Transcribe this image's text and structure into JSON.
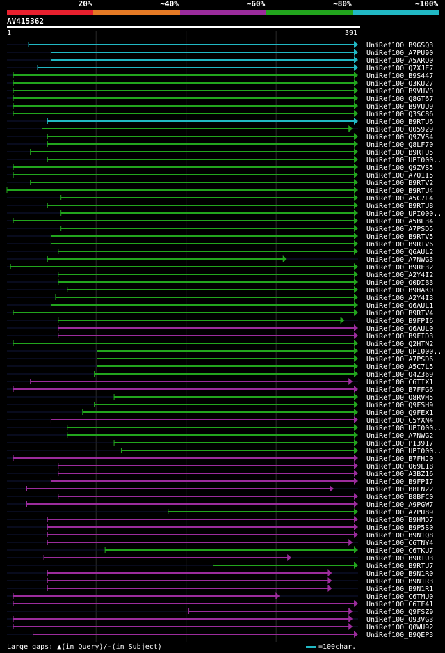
{
  "chart_data": {
    "type": "alignment-overview",
    "title": "AV415362",
    "query": {
      "start": 1,
      "end": 391,
      "start_label": "1",
      "end_label": "391"
    },
    "legend": [
      {
        "label": "20%",
        "color": "#e8202e"
      },
      {
        "label": "~40%",
        "color": "#e57a25"
      },
      {
        "label": "~60%",
        "color": "#9b2c9c"
      },
      {
        "label": "~80%",
        "color": "#22a51d"
      },
      {
        "label": "~100%",
        "color": "#21b8c4"
      }
    ],
    "hits": [
      {
        "name": "UniRef100_B9GSQ3",
        "start": 25,
        "end": 391,
        "color": "#21b8c4"
      },
      {
        "name": "UniRef100_A7PU90",
        "start": 50,
        "end": 391,
        "color": "#21b8c4"
      },
      {
        "name": "UniRef100_A5ARQ0",
        "start": 50,
        "end": 391,
        "color": "#21b8c4"
      },
      {
        "name": "UniRef100_Q7XJE7",
        "start": 35,
        "end": 391,
        "color": "#21b8c4"
      },
      {
        "name": "UniRef100_B9S447",
        "start": 8,
        "end": 391,
        "color": "#22a51d"
      },
      {
        "name": "UniRef100_Q3KU27",
        "start": 8,
        "end": 391,
        "color": "#22a51d"
      },
      {
        "name": "UniRef100_B9VUV0",
        "start": 8,
        "end": 391,
        "color": "#22a51d"
      },
      {
        "name": "UniRef100_Q8GT67",
        "start": 8,
        "end": 391,
        "color": "#22a51d"
      },
      {
        "name": "UniRef100_B9VUU9",
        "start": 8,
        "end": 391,
        "color": "#22a51d"
      },
      {
        "name": "UniRef100_Q3SC86",
        "start": 8,
        "end": 391,
        "color": "#22a51d"
      },
      {
        "name": "UniRef100_B9RTU6",
        "start": 46,
        "end": 391,
        "color": "#21b8c4"
      },
      {
        "name": "UniRef100_Q05929",
        "start": 40,
        "end": 385,
        "color": "#22a51d"
      },
      {
        "name": "UniRef100_Q9ZVS4",
        "start": 46,
        "end": 391,
        "color": "#22a51d"
      },
      {
        "name": "UniRef100_Q8LF70",
        "start": 46,
        "end": 391,
        "color": "#22a51d"
      },
      {
        "name": "UniRef100_B9RTU5",
        "start": 27,
        "end": 391,
        "color": "#22a51d"
      },
      {
        "name": "UniRef100_UPI000..",
        "start": 46,
        "end": 391,
        "color": "#22a51d"
      },
      {
        "name": "UniRef100_Q9ZVS5",
        "start": 8,
        "end": 391,
        "color": "#22a51d"
      },
      {
        "name": "UniRef100_A7Q1I5",
        "start": 8,
        "end": 391,
        "color": "#22a51d"
      },
      {
        "name": "UniRef100_B9RTV2",
        "start": 27,
        "end": 391,
        "color": "#22a51d"
      },
      {
        "name": "UniRef100_B9RTU4",
        "start": 1,
        "end": 391,
        "color": "#22a51d"
      },
      {
        "name": "UniRef100_A5C7L4",
        "start": 61,
        "end": 391,
        "color": "#22a51d"
      },
      {
        "name": "UniRef100_B9RTU8",
        "start": 46,
        "end": 391,
        "color": "#22a51d"
      },
      {
        "name": "UniRef100_UPI000..",
        "start": 61,
        "end": 391,
        "color": "#22a51d"
      },
      {
        "name": "UniRef100_A5BL34",
        "start": 8,
        "end": 391,
        "color": "#22a51d"
      },
      {
        "name": "UniRef100_A7PSD5",
        "start": 61,
        "end": 391,
        "color": "#22a51d"
      },
      {
        "name": "UniRef100_B9RTV5",
        "start": 50,
        "end": 391,
        "color": "#22a51d"
      },
      {
        "name": "UniRef100_B9RTV6",
        "start": 50,
        "end": 391,
        "color": "#22a51d"
      },
      {
        "name": "UniRef100_Q6AUL2",
        "start": 58,
        "end": 391,
        "color": "#22a51d"
      },
      {
        "name": "UniRef100_A7NWG3",
        "start": 46,
        "end": 312,
        "color": "#22a51d"
      },
      {
        "name": "UniRef100_B9RF32",
        "start": 5,
        "end": 391,
        "color": "#22a51d"
      },
      {
        "name": "UniRef100_A2Y4I2",
        "start": 58,
        "end": 391,
        "color": "#22a51d"
      },
      {
        "name": "UniRef100_Q0DIB3",
        "start": 58,
        "end": 391,
        "color": "#22a51d"
      },
      {
        "name": "UniRef100_B9HAK0",
        "start": 68,
        "end": 391,
        "color": "#22a51d"
      },
      {
        "name": "UniRef100_A2Y4I3",
        "start": 55,
        "end": 391,
        "color": "#22a51d"
      },
      {
        "name": "UniRef100_Q6AUL1",
        "start": 50,
        "end": 391,
        "color": "#22a51d"
      },
      {
        "name": "UniRef100_B9RTV4",
        "start": 8,
        "end": 391,
        "color": "#22a51d"
      },
      {
        "name": "UniRef100_B9FPI6",
        "start": 58,
        "end": 376,
        "color": "#22a51d"
      },
      {
        "name": "UniRef100_Q6AUL0",
        "start": 58,
        "end": 391,
        "color": "#9b2c9c"
      },
      {
        "name": "UniRef100_B9FID3",
        "start": 58,
        "end": 391,
        "color": "#9b2c9c"
      },
      {
        "name": "UniRef100_Q2HTN2",
        "start": 8,
        "end": 391,
        "color": "#22a51d"
      },
      {
        "name": "UniRef100_UPI000..",
        "start": 101,
        "end": 391,
        "color": "#22a51d"
      },
      {
        "name": "UniRef100_A7PSD6",
        "start": 101,
        "end": 391,
        "color": "#22a51d"
      },
      {
        "name": "UniRef100_A5C7L5",
        "start": 101,
        "end": 391,
        "color": "#22a51d"
      },
      {
        "name": "UniRef100_Q4Z369",
        "start": 98,
        "end": 391,
        "color": "#22a51d"
      },
      {
        "name": "UniRef100_C6TIX1",
        "start": 27,
        "end": 385,
        "color": "#9b2c9c"
      },
      {
        "name": "UniRef100_B7FFG6",
        "start": 8,
        "end": 391,
        "color": "#9b2c9c"
      },
      {
        "name": "UniRef100_Q8RVH5",
        "start": 120,
        "end": 391,
        "color": "#22a51d"
      },
      {
        "name": "UniRef100_Q9FSH9",
        "start": 98,
        "end": 391,
        "color": "#22a51d"
      },
      {
        "name": "UniRef100_Q9FEX1",
        "start": 85,
        "end": 391,
        "color": "#22a51d"
      },
      {
        "name": "UniRef100_C5YXN4",
        "start": 50,
        "end": 391,
        "color": "#9b2c9c"
      },
      {
        "name": "UniRef100_UPI000..",
        "start": 68,
        "end": 391,
        "color": "#22a51d"
      },
      {
        "name": "UniRef100_A7NWG2",
        "start": 68,
        "end": 391,
        "color": "#22a51d"
      },
      {
        "name": "UniRef100_P13917",
        "start": 120,
        "end": 391,
        "color": "#22a51d"
      },
      {
        "name": "UniRef100_UPI000..",
        "start": 128,
        "end": 391,
        "color": "#22a51d"
      },
      {
        "name": "UniRef100_B7FHJ0",
        "start": 8,
        "end": 391,
        "color": "#9b2c9c"
      },
      {
        "name": "UniRef100_Q69L18",
        "start": 58,
        "end": 391,
        "color": "#9b2c9c"
      },
      {
        "name": "UniRef100_A3BZ16",
        "start": 58,
        "end": 391,
        "color": "#9b2c9c"
      },
      {
        "name": "UniRef100_B9FPI7",
        "start": 50,
        "end": 391,
        "color": "#9b2c9c"
      },
      {
        "name": "UniRef100_B8LN22",
        "start": 23,
        "end": 364,
        "color": "#9b2c9c"
      },
      {
        "name": "UniRef100_B8BFC0",
        "start": 58,
        "end": 391,
        "color": "#9b2c9c"
      },
      {
        "name": "UniRef100_A9PGW7",
        "start": 23,
        "end": 391,
        "color": "#9b2c9c"
      },
      {
        "name": "UniRef100_A7PU89",
        "start": 180,
        "end": 391,
        "color": "#22a51d"
      },
      {
        "name": "UniRef100_B9HMD7",
        "start": 46,
        "end": 391,
        "color": "#9b2c9c"
      },
      {
        "name": "UniRef100_B9P5S0",
        "start": 46,
        "end": 391,
        "color": "#9b2c9c"
      },
      {
        "name": "UniRef100_B9N1Q8",
        "start": 46,
        "end": 391,
        "color": "#9b2c9c"
      },
      {
        "name": "UniRef100_C6TNY4",
        "start": 46,
        "end": 385,
        "color": "#9b2c9c"
      },
      {
        "name": "UniRef100_C6TKU7",
        "start": 110,
        "end": 391,
        "color": "#22a51d"
      },
      {
        "name": "UniRef100_B9RTU3",
        "start": 42,
        "end": 317,
        "color": "#9b2c9c"
      },
      {
        "name": "UniRef100_B9RTU7",
        "start": 230,
        "end": 391,
        "color": "#22a51d"
      },
      {
        "name": "UniRef100_B9N1R0",
        "start": 46,
        "end": 362,
        "color": "#9b2c9c"
      },
      {
        "name": "UniRef100_B9N1R3",
        "start": 46,
        "end": 362,
        "color": "#9b2c9c"
      },
      {
        "name": "UniRef100_B9N1R1",
        "start": 46,
        "end": 362,
        "color": "#9b2c9c"
      },
      {
        "name": "UniRef100_C6TMU0",
        "start": 8,
        "end": 304,
        "color": "#9b2c9c"
      },
      {
        "name": "UniRef100_C6TF41",
        "start": 8,
        "end": 391,
        "color": "#9b2c9c"
      },
      {
        "name": "UniRef100_Q9FSZ9",
        "start": 203,
        "end": 385,
        "color": "#9b2c9c"
      },
      {
        "name": "UniRef100_Q93VG3",
        "start": 8,
        "end": 385,
        "color": "#9b2c9c"
      },
      {
        "name": "UniRef100_Q0WU92",
        "start": 8,
        "end": 385,
        "color": "#9b2c9c"
      },
      {
        "name": "UniRef100_B9QEP3",
        "start": 30,
        "end": 391,
        "color": "#9b2c9c"
      }
    ]
  },
  "footer": {
    "large_gaps_label": "Large gaps:",
    "in_query": "(in Query)/",
    "in_subject": "(in Subject)",
    "scale_label": "=100char."
  }
}
